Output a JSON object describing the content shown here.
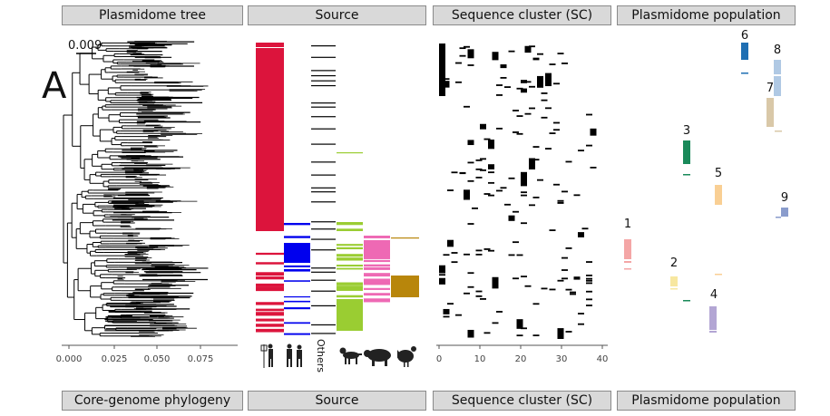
{
  "headers_top": [
    "Plasmidome tree",
    "Source",
    "Sequence cluster (SC)",
    "Plasmidome population"
  ],
  "headers_bottom": [
    "Core-genome phylogeny",
    "Source",
    "Sequence cluster (SC)",
    "Plasmidome population"
  ],
  "panel_letter": "A",
  "scale_bar_label": "0.009",
  "tree_axis_ticks": [
    "0.000",
    "0.025",
    "0.050",
    "0.075"
  ],
  "sc_axis_ticks": [
    "0",
    "10",
    "20",
    "30",
    "40"
  ],
  "source_labels": {
    "others": "Others"
  },
  "source_icons": [
    "human-hospital-icon",
    "human-community-icon",
    "dog-icon",
    "pig-icon",
    "chicken-icon"
  ],
  "populations": [
    {
      "label": "1",
      "color": "#f4a6a6"
    },
    {
      "label": "2",
      "color": "#f7e7a0"
    },
    {
      "label": "3",
      "color": "#1a8a5a"
    },
    {
      "label": "4",
      "color": "#b3a6d4"
    },
    {
      "label": "5",
      "color": "#f9cf94"
    },
    {
      "label": "6",
      "color": "#1f6fb3"
    },
    {
      "label": "7",
      "color": "#d9c8a8"
    },
    {
      "label": "8",
      "color": "#b0c9e4"
    },
    {
      "label": "9",
      "color": "#8a9ccc"
    }
  ],
  "colors": {
    "source_human_hospital": "#dc143c",
    "source_human_community": "#0000ee",
    "source_others": "#000000",
    "source_dog": "#9acd32",
    "source_pig": "#ee69b4",
    "source_chicken": "#b8860b"
  }
}
